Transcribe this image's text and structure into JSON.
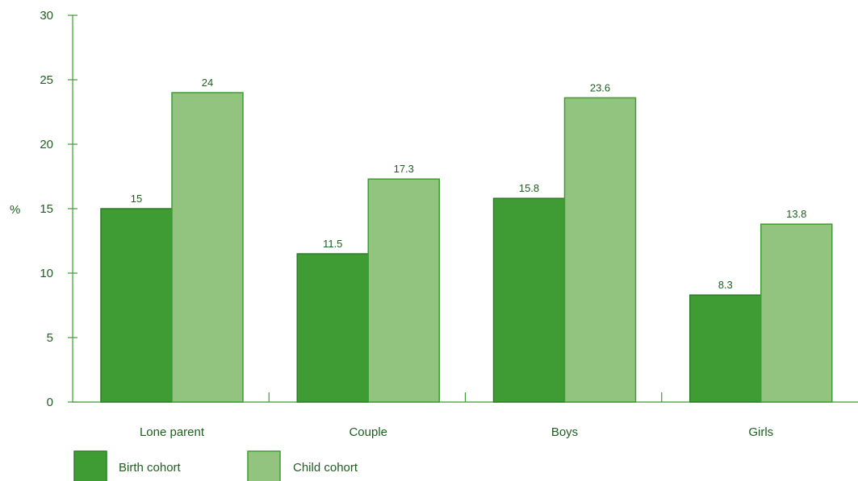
{
  "chart_data": {
    "type": "bar",
    "ylabel": "%",
    "ylim": [
      0,
      30
    ],
    "yticks": [
      0,
      5,
      10,
      15,
      20,
      25,
      30
    ],
    "grid": false,
    "legend_position": "bottom-left",
    "categories": [
      "Lone parent",
      "Couple",
      "Boys",
      "Girls"
    ],
    "series": [
      {
        "name": "Birth cohort",
        "values": [
          15,
          11.5,
          15.8,
          8.3
        ],
        "labels": [
          "15",
          "11.5",
          "15.8",
          "8.3"
        ],
        "color": "#3f9b34",
        "stroke": "#2e7d2a"
      },
      {
        "name": "Child cohort",
        "values": [
          24,
          17.3,
          23.6,
          13.8
        ],
        "labels": [
          "24",
          "17.3",
          "23.6",
          "13.8"
        ],
        "color": "#93c47f",
        "stroke": "#3f9b34"
      }
    ],
    "axis_color": "#3f9b34"
  }
}
